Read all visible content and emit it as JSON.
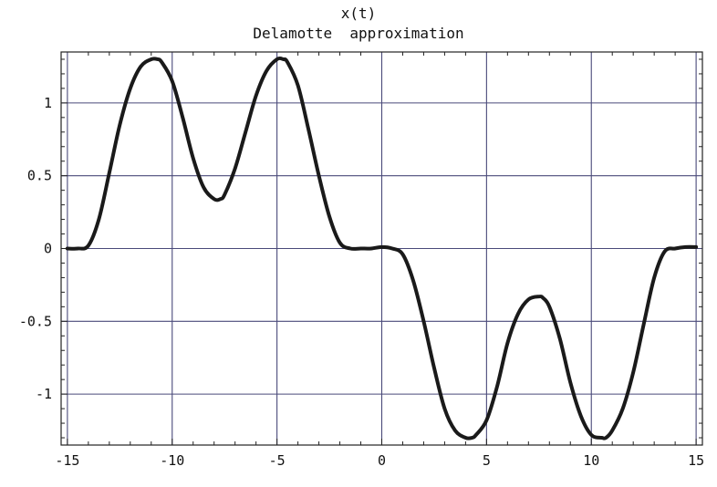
{
  "chart_data": {
    "type": "line",
    "title": "x(t)",
    "subtitle": "Delamotte  approximation",
    "xlabel": "",
    "ylabel": "",
    "xlim": [
      -15.3,
      15.3
    ],
    "ylim": [
      -1.35,
      1.35
    ],
    "grid": true,
    "grid_color": "#4a4a7a",
    "line_color": "#1a1a1a",
    "x_ticks": [
      -15,
      -10,
      -5,
      0,
      5,
      10,
      15
    ],
    "x_tick_labels": [
      "-15",
      "-10",
      "-5",
      "0",
      "5",
      "10",
      "15"
    ],
    "y_ticks": [
      -1,
      -0.5,
      0,
      0.5,
      1
    ],
    "y_tick_labels": [
      "-1",
      "-0.5",
      "0",
      "0.5",
      "1"
    ],
    "series": [
      {
        "x": [
          -15,
          -14.5,
          -14,
          -13.5,
          -13,
          -12.5,
          -12,
          -11.5,
          -11,
          -10.7,
          -10.5,
          -10,
          -9.5,
          -9,
          -8.5,
          -8,
          -7.7,
          -7.5,
          -7,
          -6.5,
          -6,
          -5.5,
          -5,
          -4.7,
          -4.5,
          -4,
          -3.5,
          -3,
          -2.5,
          -2,
          -1.5,
          -1,
          -0.5,
          0,
          0.5,
          1,
          1.5,
          2,
          2.5,
          3,
          3.5,
          4,
          4.3,
          4.5,
          5,
          5.5,
          6,
          6.5,
          7,
          7.5,
          7.7,
          8,
          8.5,
          9,
          9.5,
          10,
          10.5,
          10.7,
          11,
          11.5,
          12,
          12.5,
          13,
          13.5,
          14,
          14.5,
          15
        ],
        "y": [
          0,
          0,
          0.02,
          0.2,
          0.52,
          0.85,
          1.1,
          1.25,
          1.3,
          1.3,
          1.28,
          1.15,
          0.9,
          0.62,
          0.42,
          0.34,
          0.34,
          0.37,
          0.55,
          0.8,
          1.05,
          1.22,
          1.3,
          1.3,
          1.28,
          1.12,
          0.82,
          0.5,
          0.22,
          0.04,
          0,
          0,
          0,
          0.01,
          0,
          -0.04,
          -0.22,
          -0.5,
          -0.82,
          -1.1,
          -1.25,
          -1.3,
          -1.3,
          -1.28,
          -1.18,
          -0.95,
          -0.65,
          -0.45,
          -0.35,
          -0.33,
          -0.34,
          -0.4,
          -0.62,
          -0.92,
          -1.15,
          -1.28,
          -1.3,
          -1.3,
          -1.25,
          -1.1,
          -0.85,
          -0.52,
          -0.2,
          -0.02,
          0,
          0.01,
          0.01
        ]
      }
    ]
  }
}
